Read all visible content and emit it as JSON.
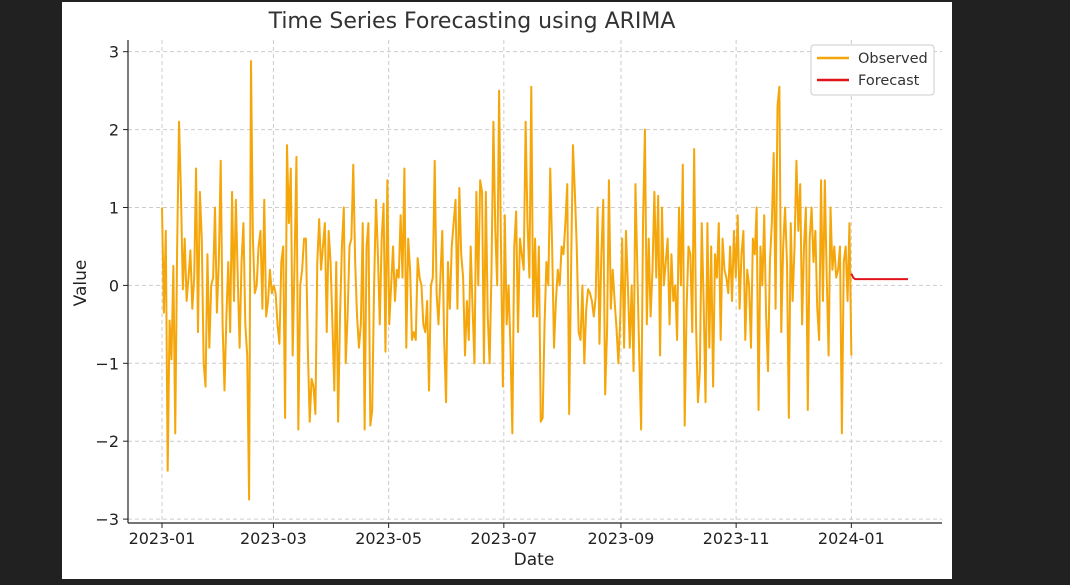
{
  "chart_data": {
    "type": "line",
    "title": "Time Series Forecasting using ARIMA",
    "xlabel": "Date",
    "ylabel": "Value",
    "x_ticks": [
      "2023-01",
      "2023-03",
      "2023-05",
      "2023-07",
      "2023-09",
      "2023-11",
      "2024-01"
    ],
    "y_ticks": [
      "3",
      "2",
      "1",
      "0",
      "−1",
      "−2",
      "−3"
    ],
    "xlim": [
      "2022-12-14",
      "2024-02-18"
    ],
    "ylim": [
      -3.05,
      3.15
    ],
    "grid": true,
    "legend_position": "top-right",
    "colors": {
      "observed": "#f5a60a",
      "forecast": "#e0151c"
    },
    "series": [
      {
        "name": "Observed",
        "x_start": "2023-01-01",
        "x_end": "2024-01-01",
        "frequency": "daily",
        "values": [
          1.0,
          -0.35,
          0.7,
          -2.38,
          -0.45,
          -0.95,
          0.25,
          -1.9,
          0.5,
          2.1,
          1.2,
          -0.05,
          0.6,
          -0.2,
          0.1,
          0.45,
          -0.3,
          0.1,
          1.5,
          -0.6,
          1.2,
          0.6,
          -1.0,
          -1.3,
          0.4,
          -0.8,
          0.0,
          0.1,
          1.0,
          -0.35,
          0.3,
          1.6,
          -0.5,
          -1.35,
          -0.4,
          0.3,
          -0.6,
          1.2,
          -0.2,
          1.1,
          0.1,
          -0.8,
          0.3,
          0.8,
          -0.5,
          -0.9,
          -2.75,
          2.88,
          0.6,
          -0.1,
          0.0,
          0.5,
          0.7,
          -0.3,
          1.1,
          -0.4,
          -0.2,
          0.2,
          -0.1,
          0.0,
          -0.1,
          -0.5,
          -0.75,
          0.3,
          0.5,
          -1.7,
          1.8,
          0.8,
          1.5,
          -0.9,
          0.3,
          1.65,
          -1.85,
          0.0,
          0.2,
          0.6,
          0.6,
          -0.8,
          -1.75,
          -1.2,
          -1.3,
          -1.65,
          0.3,
          0.85,
          0.2,
          0.5,
          0.8,
          -0.6,
          0.7,
          0.3,
          -0.5,
          -1.35,
          0.3,
          -1.75,
          -0.4,
          0.5,
          1.0,
          -1.0,
          -0.4,
          0.5,
          0.6,
          1.55,
          0.3,
          -0.4,
          -0.8,
          -0.5,
          0.8,
          -1.85,
          0.5,
          0.8,
          -1.8,
          -1.6,
          0.0,
          1.1,
          0.4,
          -0.5,
          0.6,
          1.05,
          -0.85,
          1.35,
          -0.5,
          0.0,
          0.5,
          -0.2,
          0.2,
          0.1,
          0.9,
          0.1,
          1.5,
          -0.8,
          0.6,
          0.2,
          -0.7,
          -0.6,
          -0.7,
          0.35,
          0.1,
          0.0,
          -0.5,
          -0.6,
          -0.2,
          -1.35,
          0.0,
          0.1,
          1.6,
          -0.1,
          -0.5,
          0.1,
          0.7,
          -0.7,
          -1.5,
          0.3,
          -0.3,
          0.5,
          0.8,
          1.1,
          -0.3,
          1.25,
          0.4,
          0.1,
          -0.9,
          -0.2,
          -0.7,
          0.5,
          -0.3,
          -1.0,
          1.2,
          0.0,
          1.35,
          1.2,
          -1.0,
          1.2,
          -0.4,
          -1.0,
          0.2,
          2.1,
          0.7,
          0.0,
          2.5,
          0.5,
          -1.3,
          0.9,
          -0.5,
          0.0,
          -0.8,
          -1.9,
          0.5,
          0.95,
          -0.6,
          0.6,
          0.4,
          0.2,
          2.1,
          0.8,
          0.1,
          2.55,
          -0.4,
          0.6,
          -0.4,
          0.5,
          -1.75,
          -1.7,
          -0.5,
          0.3,
          0.0,
          1.5,
          0.5,
          -0.8,
          -0.2,
          0.2,
          0.0,
          0.5,
          0.4,
          0.8,
          1.3,
          -1.65,
          0.2,
          1.8,
          1.2,
          0.5,
          -0.6,
          -0.7,
          0.0,
          -1.0,
          -0.3,
          -0.05,
          -0.1,
          -0.2,
          -0.4,
          -0.15,
          1.0,
          -0.75,
          0.4,
          1.1,
          -1.4,
          -0.6,
          1.35,
          -0.3,
          0.2,
          -0.2,
          -0.55,
          -1.0,
          -0.4,
          0.6,
          -0.8,
          0.7,
          0.0,
          -0.8,
          0.0,
          -1.1,
          1.3,
          0.2,
          -0.9,
          -1.85,
          0.8,
          2.0,
          -0.5,
          0.6,
          -0.4,
          0.2,
          1.2,
          0.1,
          1.15,
          -0.9,
          1.0,
          0.0,
          0.3,
          0.6,
          -0.5,
          0.4,
          -0.2,
          0.0,
          -0.7,
          1.0,
          0.0,
          1.55,
          -1.8,
          -0.3,
          0.5,
          0.4,
          -0.6,
          1.75,
          -0.5,
          -1.5,
          -1.1,
          0.8,
          -0.2,
          -1.5,
          0.8,
          -0.8,
          0.5,
          -1.3,
          0.4,
          0.1,
          0.8,
          -0.7,
          0.6,
          0.2,
          0.1,
          -0.1,
          0.5,
          -0.2,
          0.7,
          0.1,
          0.9,
          -0.3,
          0.4,
          0.7,
          -0.7,
          0.2,
          0.0,
          -0.8,
          0.6,
          0.4,
          1.0,
          -1.6,
          0.5,
          0.0,
          0.9,
          -0.4,
          -1.1,
          0.3,
          0.8,
          1.7,
          -0.3,
          2.3,
          2.55,
          -0.6,
          0.5,
          1.0,
          0.3,
          -1.7,
          0.8,
          -0.2,
          0.5,
          1.6,
          0.7,
          1.3,
          -0.5,
          0.5,
          1.0,
          -1.6,
          0.6,
          1.0,
          0.3,
          0.7,
          -0.3,
          -0.7,
          1.35,
          -0.2,
          1.35,
          0.1,
          -0.9,
          1.0,
          0.2,
          0.5,
          0.1,
          0.2,
          0.5,
          -1.9,
          0.3,
          0.5,
          -0.2,
          0.8,
          -0.9
        ]
      },
      {
        "name": "Forecast",
        "x_start": "2024-01-01",
        "x_end": "2024-01-31",
        "frequency": "daily",
        "values": [
          0.15,
          0.1,
          0.08,
          0.08,
          0.08,
          0.08,
          0.08,
          0.08,
          0.08,
          0.08,
          0.08,
          0.08,
          0.08,
          0.08,
          0.08,
          0.08,
          0.08,
          0.08,
          0.08,
          0.08,
          0.08,
          0.08,
          0.08,
          0.08,
          0.08,
          0.08,
          0.08,
          0.08,
          0.08,
          0.08,
          0.08
        ]
      }
    ]
  }
}
